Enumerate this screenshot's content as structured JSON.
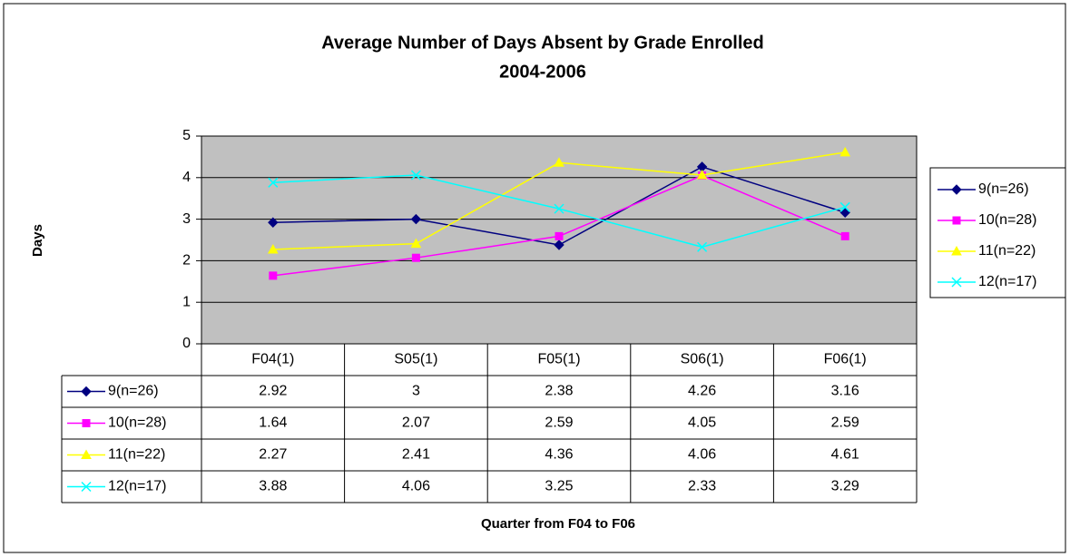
{
  "chart_data": {
    "type": "line",
    "title": "Average Number of Days Absent by Grade Enrolled",
    "subtitle": "2004-2006",
    "y_label": "Days",
    "x_label": "Quarter from F04 to F06",
    "categories": [
      "F04(1)",
      "S05(1)",
      "F05(1)",
      "S06(1)",
      "F06(1)"
    ],
    "series": [
      {
        "name": "9(n=26)",
        "color": "#000080",
        "marker": "diamond",
        "values": [
          2.92,
          3,
          2.38,
          4.26,
          3.16
        ]
      },
      {
        "name": "10(n=28)",
        "color": "#ff00ff",
        "marker": "square",
        "values": [
          1.64,
          2.07,
          2.59,
          4.05,
          2.59
        ]
      },
      {
        "name": "11(n=22)",
        "color": "#ffff00",
        "marker": "triangle",
        "values": [
          2.27,
          2.41,
          4.36,
          4.06,
          4.61
        ]
      },
      {
        "name": "12(n=17)",
        "color": "#00ffff",
        "marker": "x",
        "values": [
          3.88,
          4.06,
          3.25,
          2.33,
          3.29
        ]
      }
    ],
    "ylim": [
      0,
      5
    ],
    "yticks": [
      0,
      1,
      2,
      3,
      4,
      5
    ],
    "grid": true,
    "legend": "right",
    "data_table": true
  }
}
